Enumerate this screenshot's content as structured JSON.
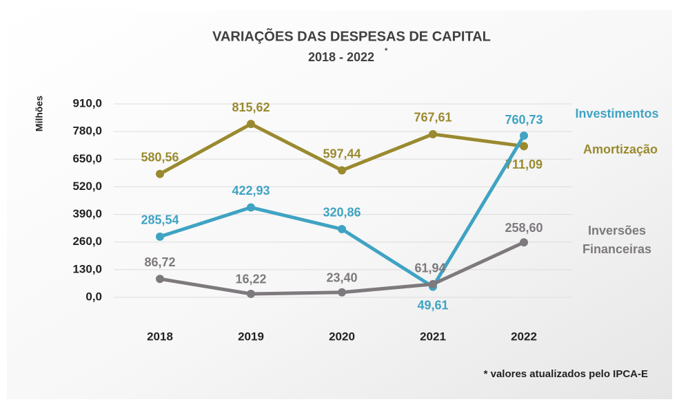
{
  "chart_data": {
    "type": "line",
    "title": "VARIAÇÕES DAS DESPESAS DE CAPITAL",
    "subtitle": "2018 - 2022",
    "subtitle_mark": "*",
    "y_label": "Milhões",
    "footnote": "* valores atualizados pelo IPCA-E",
    "categories": [
      "2018",
      "2019",
      "2020",
      "2021",
      "2022"
    ],
    "ylim": [
      0,
      910
    ],
    "yticks": [
      {
        "value": 0,
        "label": "0,0"
      },
      {
        "value": 130,
        "label": "130,0"
      },
      {
        "value": 260,
        "label": "260,0"
      },
      {
        "value": 390,
        "label": "390,0"
      },
      {
        "value": 520,
        "label": "520,0"
      },
      {
        "value": 650,
        "label": "650,0"
      },
      {
        "value": 780,
        "label": "780,0"
      },
      {
        "value": 910,
        "label": "910,0"
      }
    ],
    "grid": true,
    "series": [
      {
        "name": "Amortização",
        "color": "#9a8a2f",
        "values": [
          580.56,
          815.62,
          597.44,
          767.61,
          711.09
        ],
        "value_labels": [
          "580,56",
          "815,62",
          "597,44",
          "767,61",
          "711,09"
        ]
      },
      {
        "name": "Investimentos",
        "color": "#3fa3c3",
        "values": [
          285.54,
          422.93,
          320.86,
          49.61,
          760.73
        ],
        "value_labels": [
          "285,54",
          "422,93",
          "320,86",
          "49,61",
          "760,73"
        ]
      },
      {
        "name": "Inversões Financeiras",
        "color": "#7d797d",
        "values": [
          86.72,
          16.22,
          23.4,
          61.94,
          258.6
        ],
        "value_labels": [
          "86,72",
          "16,22",
          "23,40",
          "61,94",
          "258,60"
        ]
      }
    ]
  }
}
